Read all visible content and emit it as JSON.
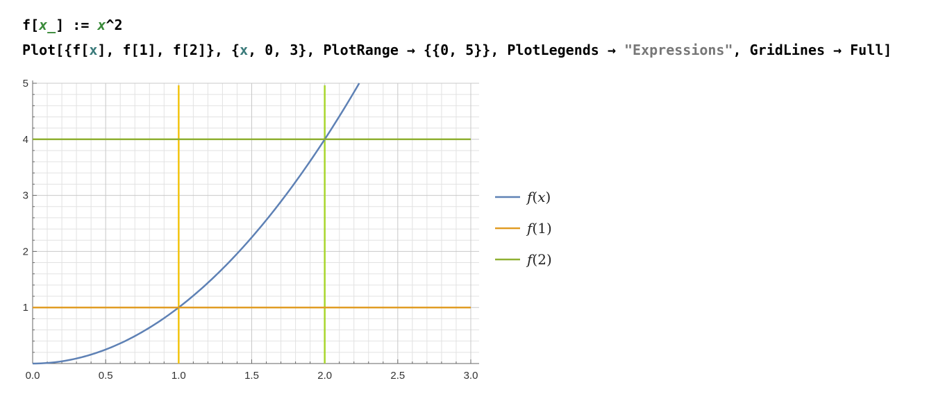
{
  "input": {
    "line1": {
      "f": "f",
      "open": "[",
      "arg": "x_",
      "close": "]",
      "assign": " := ",
      "rhs_var": "x",
      "rhs_op": "^2"
    },
    "line2": {
      "p1": "Plot[{f[",
      "x1": "x",
      "p2": "], f[1], f[2]}, {",
      "x2": "x",
      "p3": ", 0, 3}, PlotRange → {{0, 5}}, PlotLegends → ",
      "str": "\"Expressions\"",
      "p4": ", GridLines → Full]"
    }
  },
  "chart_data": {
    "type": "line",
    "xlim": [
      0,
      3
    ],
    "ylim": [
      0,
      5
    ],
    "grid": "full",
    "x_ticks": [
      "0.0",
      "0.5",
      "1.0",
      "1.5",
      "2.0",
      "2.5",
      "3.0"
    ],
    "y_ticks": [
      "1",
      "2",
      "3",
      "4",
      "5"
    ],
    "series": [
      {
        "name": "f(x)",
        "color": "#5e81b5",
        "points": [
          [
            0,
            0
          ],
          [
            0.25,
            0.0625
          ],
          [
            0.5,
            0.25
          ],
          [
            0.75,
            0.5625
          ],
          [
            1,
            1
          ],
          [
            1.25,
            1.5625
          ],
          [
            1.5,
            2.25
          ],
          [
            1.75,
            3.0625
          ],
          [
            2,
            4
          ],
          [
            2.236,
            5
          ]
        ]
      },
      {
        "name": "f(1)",
        "color": "#e19c24",
        "points": [
          [
            0,
            1
          ],
          [
            3,
            1
          ]
        ]
      },
      {
        "name": "f(2)",
        "color": "#8fb032",
        "points": [
          [
            0,
            4
          ],
          [
            3,
            4
          ]
        ]
      }
    ],
    "vertical_lines": [
      {
        "x": 1,
        "color": "#f2c40f"
      },
      {
        "x": 2,
        "color": "#a8d62c"
      }
    ],
    "legend_position": "right"
  }
}
